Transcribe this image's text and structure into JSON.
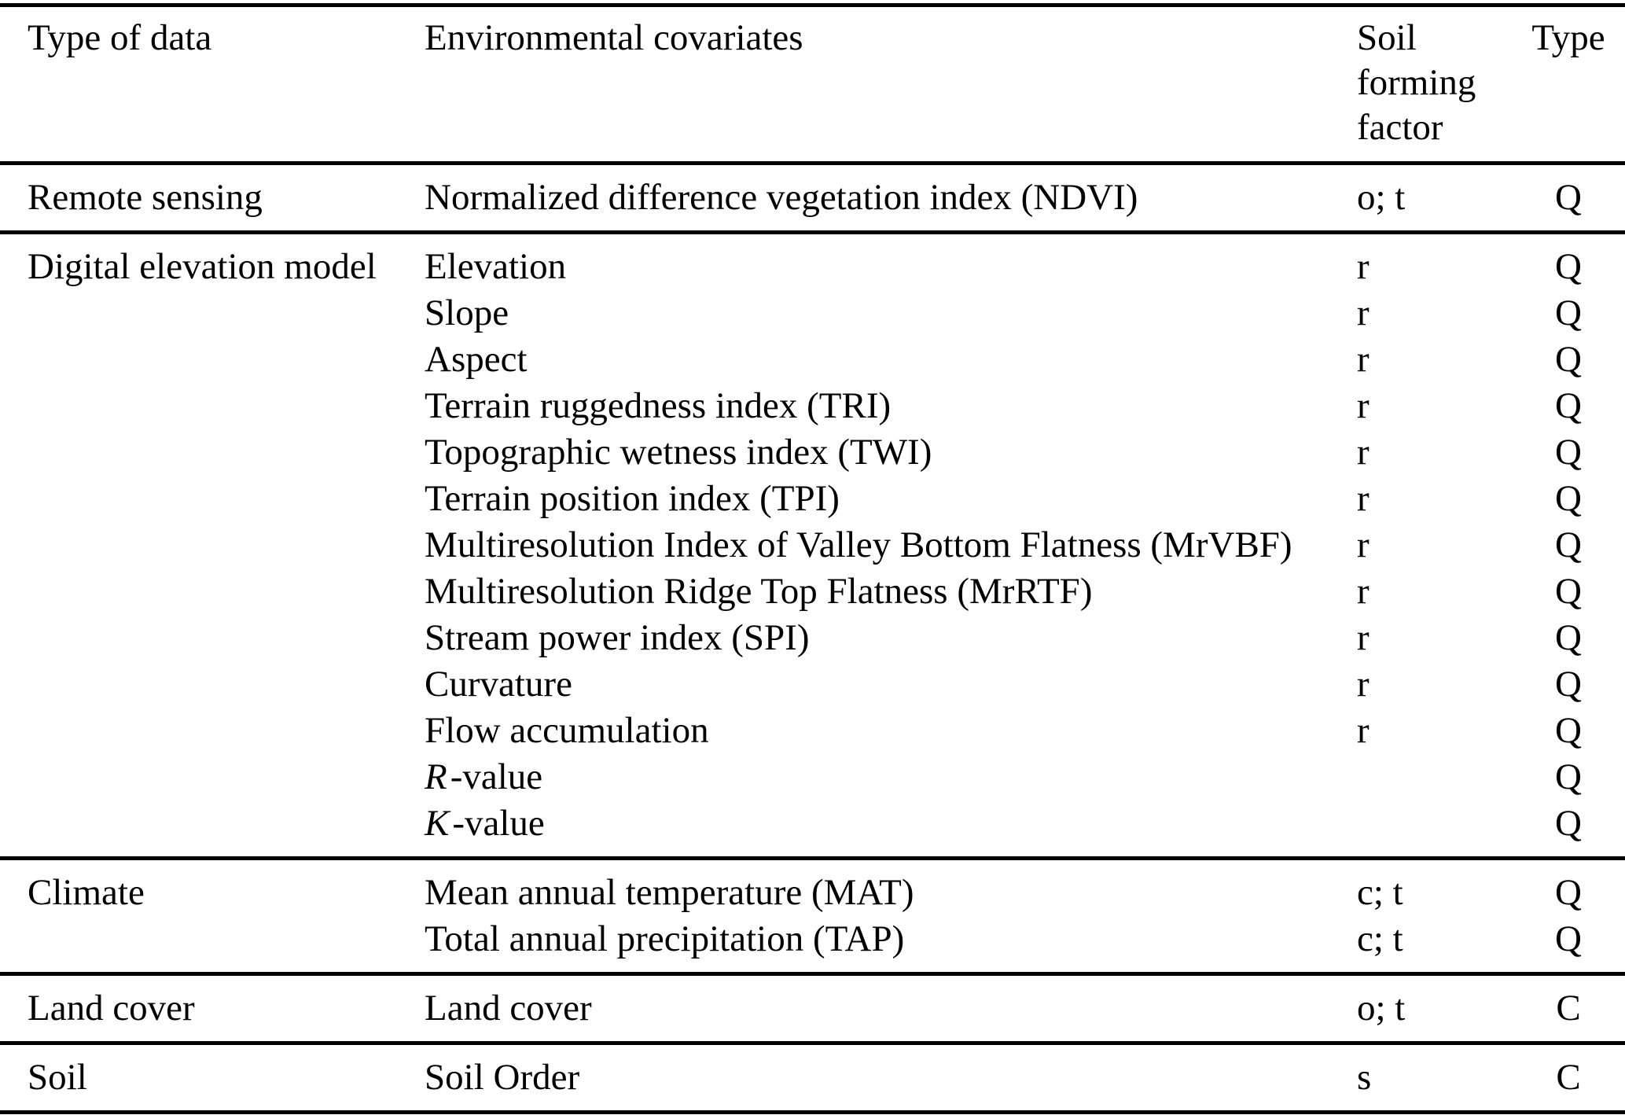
{
  "table_title": "Environmental covariates table",
  "header": {
    "col1": "Type of data",
    "col2": "Environmental covariates",
    "col3": "Soil forming factor",
    "col4": "Type"
  },
  "colors": {
    "text": "#000000",
    "rule": "#000000",
    "background": "#ffffff"
  },
  "sections": [
    {
      "type_of_data": "Remote sensing",
      "rows": [
        {
          "covariate": "Normalized difference vegetation index (NDVI)",
          "factor": "o; t",
          "type": "Q"
        }
      ]
    },
    {
      "type_of_data": "Digital elevation model",
      "rows": [
        {
          "covariate": "Elevation",
          "factor": "r",
          "type": "Q"
        },
        {
          "covariate": "Slope",
          "factor": "r",
          "type": "Q"
        },
        {
          "covariate": "Aspect",
          "factor": "r",
          "type": "Q"
        },
        {
          "covariate": "Terrain ruggedness index (TRI)",
          "factor": "r",
          "type": "Q"
        },
        {
          "covariate": "Topographic wetness index (TWI)",
          "factor": "r",
          "type": "Q"
        },
        {
          "covariate": "Terrain position index (TPI)",
          "factor": "r",
          "type": "Q"
        },
        {
          "covariate": "Multiresolution Index of Valley Bottom Flatness (MrVBF)",
          "factor": "r",
          "type": "Q"
        },
        {
          "covariate": "Multiresolution Ridge Top Flatness (MrRTF)",
          "factor": "r",
          "type": "Q"
        },
        {
          "covariate": "Stream power index (SPI)",
          "factor": "r",
          "type": "Q"
        },
        {
          "covariate": "Curvature",
          "factor": "r",
          "type": "Q"
        },
        {
          "covariate": "Flow accumulation",
          "factor": "r",
          "type": "Q"
        },
        {
          "covariate_italic_prefix": "R",
          "covariate": "-value",
          "factor": "",
          "type": "Q"
        },
        {
          "covariate_italic_prefix": "K",
          "covariate": "-value",
          "factor": "",
          "type": "Q"
        }
      ]
    },
    {
      "type_of_data": "Climate",
      "rows": [
        {
          "covariate": "Mean annual temperature (MAT)",
          "factor": "c; t",
          "type": "Q"
        },
        {
          "covariate": "Total annual precipitation (TAP)",
          "factor": "c; t",
          "type": "Q"
        }
      ]
    },
    {
      "type_of_data": "Land cover",
      "rows": [
        {
          "covariate": "Land cover",
          "factor": "o; t",
          "type": "C"
        }
      ]
    },
    {
      "type_of_data": "Soil",
      "rows": [
        {
          "covariate": "Soil Order",
          "factor": "s",
          "type": "C"
        }
      ]
    }
  ]
}
